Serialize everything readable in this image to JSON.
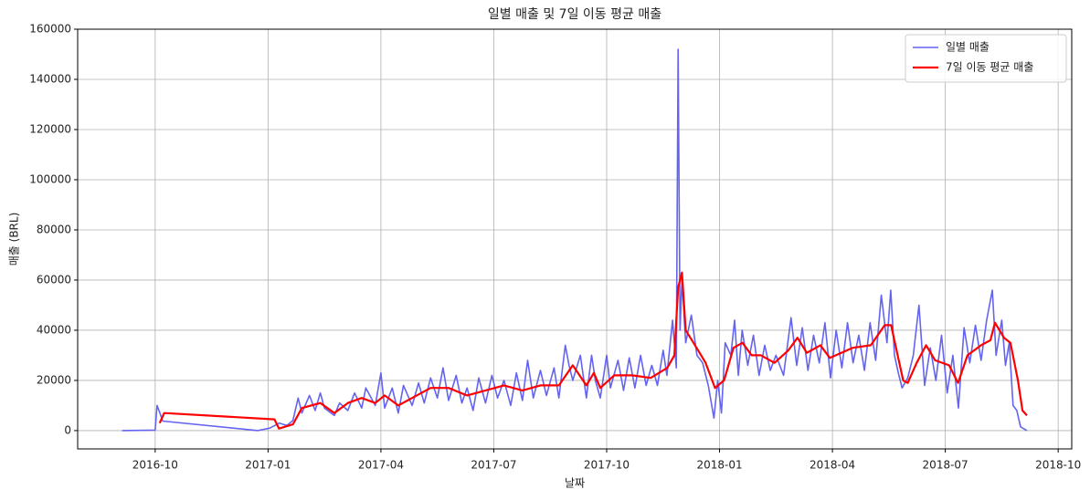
{
  "chart_data": {
    "type": "line",
    "title": "일별 매출 및 7일 이동 평균 매출",
    "x_label": "날짜",
    "y_label": "매출 (BRL)",
    "xlim": [
      6.94,
      33.36
    ],
    "ylim": [
      -7300,
      160000
    ],
    "xticks": [
      {
        "value": 9,
        "label": "2016-10"
      },
      {
        "value": 12,
        "label": "2017-01"
      },
      {
        "value": 15,
        "label": "2017-04"
      },
      {
        "value": 18,
        "label": "2017-07"
      },
      {
        "value": 21,
        "label": "2017-10"
      },
      {
        "value": 24,
        "label": "2018-01"
      },
      {
        "value": 27,
        "label": "2018-04"
      },
      {
        "value": 30,
        "label": "2018-07"
      },
      {
        "value": 33,
        "label": "2018-10"
      }
    ],
    "yticks": [
      0,
      20000,
      40000,
      60000,
      80000,
      100000,
      120000,
      140000,
      160000
    ],
    "grid": true,
    "legend": "upper right",
    "series": [
      {
        "name": "일별 매출",
        "color": "#6464f0",
        "width": 1.6,
        "x": [
          8.12,
          9.0,
          9.05,
          9.1,
          9.2,
          11.73,
          12.05,
          12.3,
          12.5,
          12.66,
          12.8,
          12.9,
          13.1,
          13.25,
          13.39,
          13.5,
          13.76,
          13.9,
          14.12,
          14.3,
          14.49,
          14.6,
          14.85,
          15.0,
          15.1,
          15.3,
          15.46,
          15.6,
          15.83,
          16.0,
          16.15,
          16.32,
          16.5,
          16.65,
          16.8,
          17.0,
          17.15,
          17.29,
          17.45,
          17.6,
          17.78,
          17.95,
          18.1,
          18.27,
          18.45,
          18.6,
          18.76,
          18.9,
          19.05,
          19.24,
          19.4,
          19.6,
          19.73,
          19.9,
          20.0,
          20.1,
          20.3,
          20.46,
          20.6,
          20.7,
          20.83,
          21.0,
          21.1,
          21.3,
          21.45,
          21.6,
          21.75,
          21.9,
          22.05,
          22.2,
          22.35,
          22.5,
          22.6,
          22.75,
          22.85,
          22.9,
          22.95,
          23.0,
          23.1,
          23.25,
          23.4,
          23.55,
          23.7,
          23.85,
          23.95,
          24.05,
          24.15,
          24.3,
          24.4,
          24.5,
          24.6,
          24.75,
          24.9,
          25.05,
          25.2,
          25.35,
          25.5,
          25.7,
          25.9,
          26.05,
          26.2,
          26.35,
          26.5,
          26.65,
          26.8,
          26.95,
          27.1,
          27.25,
          27.4,
          27.55,
          27.7,
          27.85,
          28.0,
          28.15,
          28.3,
          28.45,
          28.55,
          28.65,
          28.75,
          28.85,
          29.0,
          29.15,
          29.3,
          29.45,
          29.6,
          29.75,
          29.9,
          30.05,
          30.2,
          30.35,
          30.5,
          30.65,
          30.8,
          30.95,
          31.1,
          31.25,
          31.35,
          31.5,
          31.6,
          31.7,
          31.8,
          31.9,
          32.0,
          32.17
        ],
        "values": [
          0,
          200,
          10000,
          8000,
          3800,
          0,
          1000,
          3000,
          2000,
          4000,
          13000,
          7000,
          14000,
          8000,
          15000,
          9000,
          6000,
          11000,
          8000,
          15000,
          9000,
          17000,
          10000,
          23000,
          9000,
          17000,
          7000,
          18000,
          10000,
          19000,
          11000,
          21000,
          13000,
          25000,
          12000,
          22000,
          11000,
          17000,
          8000,
          21000,
          11000,
          22000,
          13000,
          20000,
          10000,
          23000,
          12000,
          28000,
          13000,
          24000,
          14000,
          25000,
          13000,
          34000,
          26000,
          20000,
          30000,
          13000,
          30000,
          20000,
          13000,
          30000,
          17000,
          28000,
          16000,
          29000,
          17000,
          30000,
          18000,
          26000,
          18000,
          32000,
          22000,
          44000,
          25000,
          152000,
          40000,
          60000,
          35000,
          46000,
          30000,
          27000,
          18000,
          5000,
          20000,
          7000,
          35000,
          30000,
          44000,
          22000,
          40000,
          26000,
          38000,
          22000,
          34000,
          24000,
          30000,
          22000,
          45000,
          26000,
          41000,
          24000,
          38000,
          27000,
          43000,
          21000,
          40000,
          25000,
          43000,
          27000,
          38000,
          24000,
          43000,
          28000,
          54000,
          35000,
          56000,
          30000,
          23000,
          17000,
          21000,
          30000,
          50000,
          18000,
          33000,
          20000,
          38000,
          15000,
          30000,
          9000,
          41000,
          27000,
          42000,
          28000,
          44000,
          56000,
          30000,
          44000,
          26000,
          35000,
          10000,
          8000,
          1500,
          0
        ]
      },
      {
        "name": "7일 이동 평균 매출",
        "color": "#ff0000",
        "width": 2.2,
        "x": [
          9.12,
          9.24,
          12.17,
          12.29,
          12.66,
          12.9,
          13.39,
          13.76,
          14.12,
          14.49,
          14.85,
          15.1,
          15.46,
          15.83,
          16.32,
          16.8,
          17.29,
          17.78,
          18.27,
          18.76,
          19.24,
          19.73,
          20.1,
          20.46,
          20.66,
          20.83,
          21.2,
          21.68,
          22.17,
          22.61,
          22.8,
          22.9,
          23.0,
          23.1,
          23.39,
          23.63,
          23.88,
          24.12,
          24.37,
          24.61,
          24.85,
          25.1,
          25.46,
          25.83,
          26.07,
          26.32,
          26.68,
          26.93,
          27.54,
          28.02,
          28.39,
          28.56,
          28.88,
          29.0,
          29.24,
          29.49,
          29.73,
          30.1,
          30.34,
          30.59,
          30.95,
          31.2,
          31.32,
          31.56,
          31.73,
          31.93,
          32.05,
          32.17
        ],
        "values": [
          3000,
          7000,
          4500,
          800,
          2500,
          9000,
          11000,
          7000,
          11000,
          13000,
          11000,
          14000,
          10000,
          13000,
          17000,
          17000,
          14000,
          16000,
          18000,
          16000,
          18000,
          18000,
          26000,
          18000,
          23000,
          17000,
          22000,
          22000,
          21000,
          25000,
          30000,
          57000,
          63000,
          40000,
          33000,
          27000,
          17000,
          20000,
          33000,
          35000,
          30000,
          30000,
          27000,
          32000,
          37000,
          31000,
          34000,
          29000,
          33000,
          34000,
          42000,
          42000,
          20000,
          19000,
          27000,
          34000,
          28000,
          26000,
          19000,
          30000,
          34000,
          36000,
          43000,
          37000,
          35000,
          20000,
          8000,
          6000
        ]
      }
    ]
  }
}
